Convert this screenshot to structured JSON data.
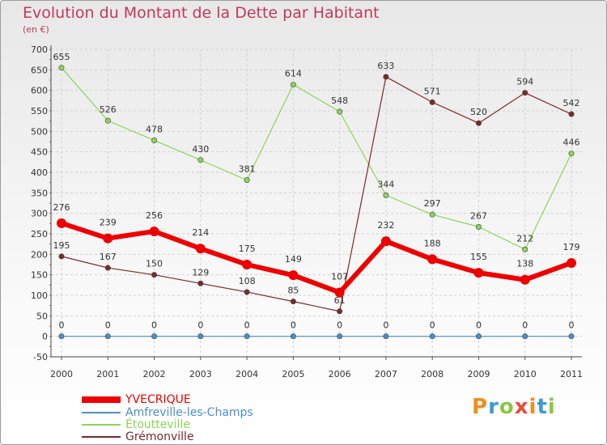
{
  "header": {
    "title": "Evolution du Montant de la Dette par Habitant",
    "subtitle": "(en €)"
  },
  "logo": {
    "text": "Proxiti",
    "colors": [
      "#f28c1e",
      "#3a9bd6",
      "#8cc63f",
      "#e74c3c",
      "#f28c1e",
      "#3a9bd6",
      "#8cc63f"
    ]
  },
  "chart_data": {
    "type": "line",
    "title": "Evolution du Montant de la Dette par Habitant",
    "subtitle": "(en €)",
    "xlabel": "",
    "ylabel": "",
    "ylim": [
      -50,
      700
    ],
    "yticks": [
      -50,
      0,
      50,
      100,
      150,
      200,
      250,
      300,
      350,
      400,
      450,
      500,
      550,
      600,
      650,
      700
    ],
    "categories": [
      "2000",
      "2001",
      "2002",
      "2003",
      "2004",
      "2005",
      "2006",
      "2007",
      "2008",
      "2009",
      "2010",
      "2011"
    ],
    "grid": true,
    "legend_position": "bottom-left",
    "series": [
      {
        "name": "YVECRIQUE",
        "color": "#ee0000",
        "values": [
          276,
          239,
          256,
          214,
          175,
          149,
          107,
          232,
          188,
          155,
          138,
          179
        ]
      },
      {
        "name": "Amfreville-les-Champs",
        "color": "#4c8fc8",
        "values": [
          0,
          0,
          0,
          0,
          0,
          0,
          0,
          0,
          0,
          0,
          0,
          0
        ]
      },
      {
        "name": "Étoutteville",
        "color": "#8cd45a",
        "values": [
          655,
          526,
          478,
          430,
          381,
          614,
          548,
          344,
          297,
          267,
          212,
          446
        ]
      },
      {
        "name": "Grémonville",
        "color": "#7a2a2a",
        "values": [
          195,
          167,
          150,
          129,
          108,
          85,
          61,
          633,
          571,
          520,
          594,
          542
        ]
      }
    ]
  }
}
